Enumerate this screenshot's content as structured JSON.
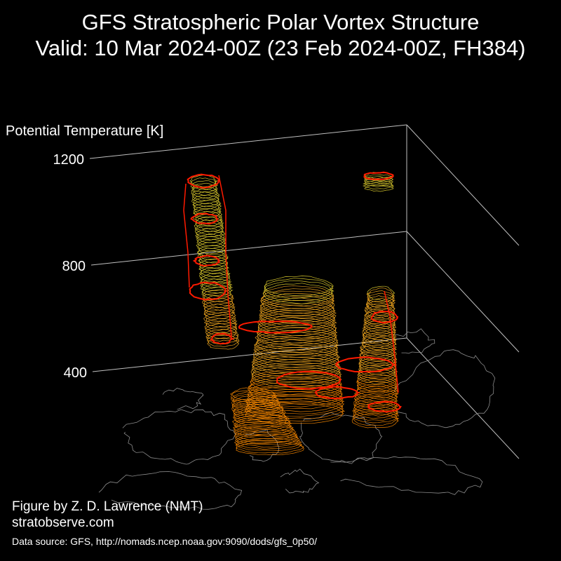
{
  "header": {
    "title_line1": "GFS Stratospheric Polar Vortex Structure",
    "title_line2": "Valid: 10 Mar 2024-00Z  (23 Feb 2024-00Z, FH384)"
  },
  "footer": {
    "credit": "Figure by Z. D. Lawrence (NMT)",
    "website": "stratobserve.com",
    "data_source": "Data source: GFS, http://nomads.ncep.noaa.gov:9090/dods/gfs_0p50/"
  },
  "chart_data": {
    "type": "3d-isosurface",
    "zlabel": "Potential Temperature [K]",
    "zticks": [
      400,
      800,
      1200
    ],
    "zlim": [
      300,
      1200
    ],
    "colors": {
      "background": "#000000",
      "axis": "#bfbfbf",
      "coastline": "#8c8c8c",
      "low_levels": "#ff8c00",
      "mid_levels": "#ffb020",
      "high_levels": "#e8d630",
      "outline": "#ff1a00"
    }
  }
}
